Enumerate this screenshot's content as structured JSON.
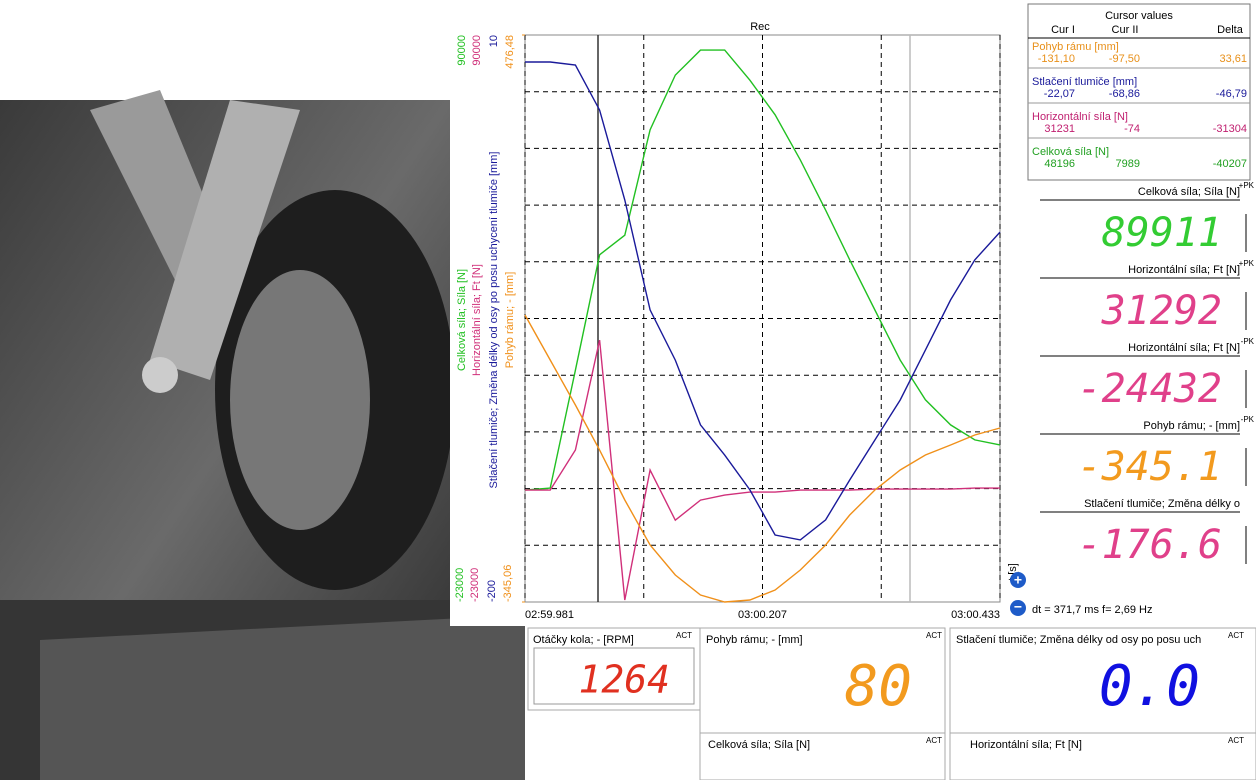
{
  "chart_data": {
    "type": "line",
    "title": "Rec",
    "x_label": "t [s]",
    "x": [
      179.981,
      180.005,
      180.029,
      180.052,
      180.076,
      180.1,
      180.124,
      180.148,
      180.171,
      180.195,
      180.219,
      180.243,
      180.267,
      180.29,
      180.314,
      180.338,
      180.362,
      180.386,
      180.409,
      180.433
    ],
    "xlim": [
      179.981,
      180.433
    ],
    "xticks": [
      {
        "value": 179.981,
        "label": "02:59.981"
      },
      {
        "value": 180.207,
        "label": "03:00.207"
      },
      {
        "value": 180.433,
        "label": "03:00.433"
      }
    ],
    "grid": true,
    "series": [
      {
        "name": "Celková síla; Síla [N]",
        "color": "#22c022",
        "ylim": [
          -23000,
          90000
        ],
        "yticks": [
          -23000,
          90000
        ],
        "values": [
          -700,
          -300,
          23200,
          46200,
          50100,
          71100,
          82000,
          87000,
          87000,
          81000,
          74100,
          65100,
          55100,
          45200,
          35200,
          25200,
          17300,
          12300,
          9300,
          8300
        ]
      },
      {
        "name": "Horizontální síla; Ft [N]",
        "color": "#d0307a",
        "ylim": [
          -23000,
          90000
        ],
        "yticks": [
          -23000,
          90000
        ],
        "values": [
          -700,
          -700,
          7300,
          29200,
          -22600,
          3300,
          -6700,
          -2700,
          -1700,
          -1100,
          -1100,
          -700,
          -700,
          -700,
          -500,
          -500,
          -500,
          -500,
          -300,
          -300
        ]
      },
      {
        "name": "Stlačení tlumiče; Změna délky od osy po posu uchycení tlumiče [mm]",
        "color": "#1a1a9a",
        "ylim": [
          -200,
          10
        ],
        "yticks": [
          -200,
          10
        ],
        "values": [
          0.0,
          0.0,
          -1.1,
          -17.8,
          -51.1,
          -91.8,
          -110.4,
          -134.4,
          -145.6,
          -158.5,
          -175.2,
          -177.0,
          -169.6,
          -154.8,
          -140.0,
          -125.2,
          -106.7,
          -88.1,
          -73.3,
          -63.0
        ]
      },
      {
        "name": "Pohyb rámu; - [mm]",
        "color": "#f0901a",
        "ylim": [
          -345.06,
          476.48
        ],
        "yticks": [
          {
            "value": -345.06,
            "label": "-345,06"
          },
          {
            "value": 476.48,
            "label": "476,48"
          }
        ],
        "values": [
          70.8,
          5.6,
          -59.6,
          -124.9,
          -197.3,
          -262.5,
          -306.0,
          -334.9,
          -345.1,
          -342.2,
          -327.7,
          -298.7,
          -262.5,
          -219.0,
          -182.8,
          -153.8,
          -132.1,
          -117.6,
          -103.1,
          -93.0
        ]
      }
    ]
  },
  "readout": "dt = 371,7 ms  f= 2,69 Hz",
  "cursor_table": {
    "title": "Cursor values",
    "columns": [
      "Cur I",
      "Cur II",
      "Delta"
    ],
    "groups": [
      {
        "name": "Pohyb rámu [mm]",
        "color": "#e8901a",
        "values": [
          "-131,10",
          "-97,50",
          "33,61"
        ]
      },
      {
        "name": "Stlačení tlumiče [mm]",
        "color": "#1a1a9a",
        "values": [
          "-22,07",
          "-68,86",
          "-46,79"
        ]
      },
      {
        "name": "Horizontální síla [N]",
        "color": "#c02070",
        "values": [
          "31231",
          "-74",
          "-31304"
        ]
      },
      {
        "name": "Celková síla [N]",
        "color": "#22a022",
        "values": [
          "48196",
          "7989",
          "-40207"
        ]
      }
    ]
  },
  "peak_displays": [
    {
      "label": "Celková síla; Síla [N]",
      "tag": "+PK",
      "value": "89911",
      "color": "#33cc33"
    },
    {
      "label": "Horizontální síla; Ft [N]",
      "tag": "+PK",
      "value": "31292",
      "color": "#e0408a"
    },
    {
      "label": "Horizontální síla; Ft [N]",
      "tag": "-PK",
      "value": "-24432",
      "color": "#e0408a"
    },
    {
      "label": "Pohyb rámu; - [mm]",
      "tag": "-PK",
      "value": "-345.1",
      "color": "#f29a1e"
    },
    {
      "label": "Stlačení tlumiče; Změna délky o",
      "tag": "",
      "value": "-176.6",
      "color": "#e0408a"
    }
  ],
  "act_displays": [
    {
      "label": "Otáčky kola; - [RPM]",
      "tag": "ACT",
      "value": "1264",
      "color": "#e03020"
    },
    {
      "label": "Pohyb rámu; - [mm]",
      "tag": "ACT",
      "value": "80",
      "color": "#f29a1e"
    },
    {
      "label": "Stlačení tlumiče; Změna délky od osy po posu uch",
      "tag": "ACT",
      "value": "0.0",
      "color": "#1010e0"
    },
    {
      "label": "Celková síla; Síla [N]",
      "tag": "ACT"
    },
    {
      "label": "Horizontální síla; Ft [N]",
      "tag": "ACT"
    }
  ]
}
